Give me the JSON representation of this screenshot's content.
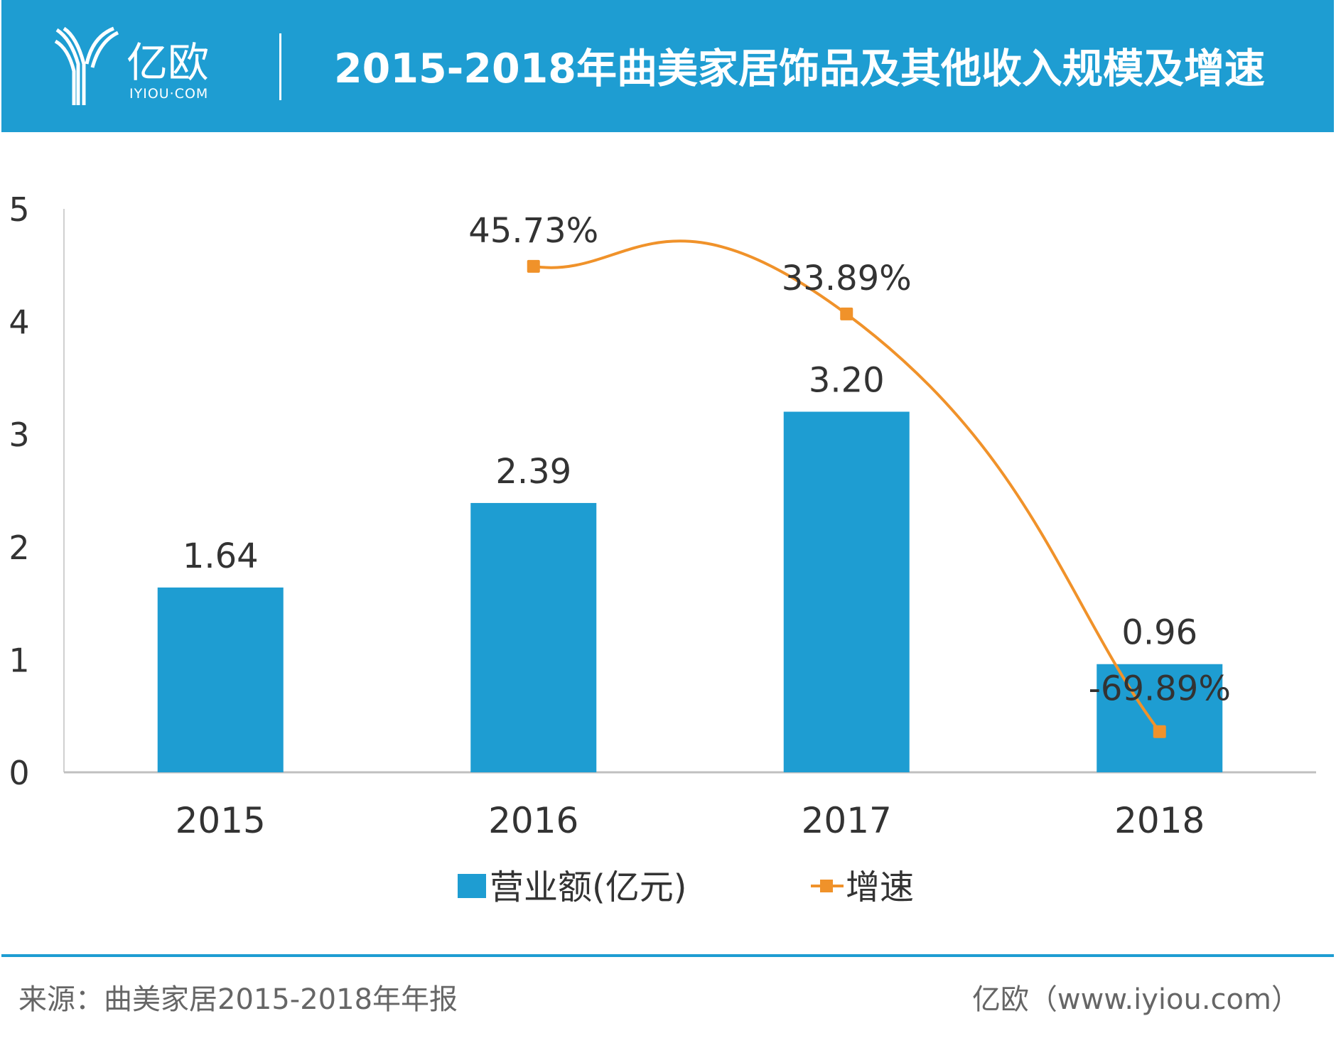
{
  "header": {
    "logo_text": "亿欧",
    "logo_sub": "IYIOU·COM",
    "title": "2015-2018年曲美家居饰品及其他收入规模及增速",
    "bg_color": "#1e9dd2"
  },
  "chart_data": {
    "type": "bar+line",
    "title": "2015-2018年曲美家居饰品及其他收入规模及增速",
    "categories": [
      "2015",
      "2016",
      "2017",
      "2018"
    ],
    "series": [
      {
        "name": "营业额(亿元)",
        "type": "bar",
        "axis": "left",
        "color": "#1e9dd2",
        "values": [
          1.64,
          2.39,
          3.2,
          0.96
        ],
        "labels": [
          "1.64",
          "2.39",
          "3.20",
          "0.96"
        ]
      },
      {
        "name": "增速",
        "type": "line",
        "axis": "right",
        "color": "#f0922a",
        "values": [
          null,
          45.73,
          33.89,
          -69.89
        ],
        "labels": [
          "",
          "45.73%",
          "33.89%",
          "-69.89%"
        ]
      }
    ],
    "ylim": [
      0,
      5
    ],
    "yticks": [
      "0",
      "1",
      "2",
      "3",
      "4",
      "5"
    ],
    "y2lim": [
      -80,
      60
    ],
    "legend_position": "bottom",
    "grid": false
  },
  "legend": {
    "bar_label": "营业额(亿元)",
    "line_label": "增速"
  },
  "footer": {
    "source": "来源：曲美家居2015-2018年年报",
    "credit": "亿欧（www.iyiou.com）"
  }
}
